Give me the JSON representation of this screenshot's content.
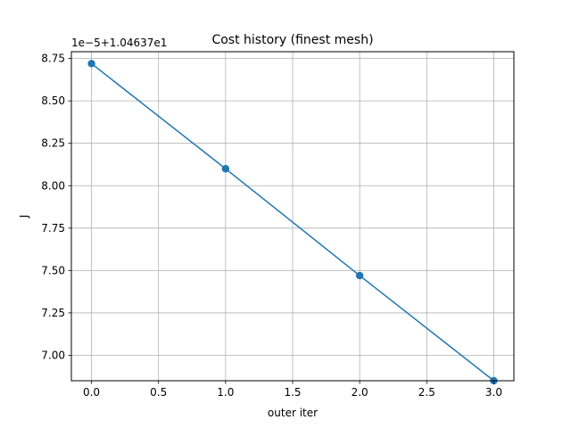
{
  "chart_data": {
    "type": "line",
    "title": "Cost history (finest mesh)",
    "xlabel": "outer iter",
    "ylabel": "J",
    "y_offset_label": "1e−5+1.04637e1",
    "xlim": [
      -0.15,
      3.15
    ],
    "ylim": [
      6.85,
      8.79
    ],
    "grid": true,
    "x_ticks": [
      0.0,
      0.5,
      1.0,
      1.5,
      2.0,
      2.5,
      3.0
    ],
    "x_tick_labels": [
      "0.0",
      "0.5",
      "1.0",
      "1.5",
      "2.0",
      "2.5",
      "3.0"
    ],
    "y_ticks": [
      7.0,
      7.25,
      7.5,
      7.75,
      8.0,
      8.25,
      8.5,
      8.75
    ],
    "y_tick_labels": [
      "7.00",
      "7.25",
      "7.50",
      "7.75",
      "8.00",
      "8.25",
      "8.50",
      "8.75"
    ],
    "series": [
      {
        "color": "#1f77b4",
        "marker": "circle",
        "x": [
          0,
          1,
          2,
          3
        ],
        "y": [
          8.72,
          8.1,
          7.47,
          6.85
        ]
      }
    ]
  }
}
